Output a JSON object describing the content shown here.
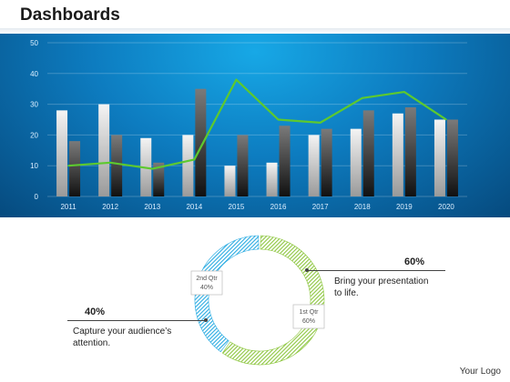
{
  "header": {
    "title": "Dashboards"
  },
  "chart_data": [
    {
      "type": "bar",
      "categories": [
        "2011",
        "2012",
        "2013",
        "2014",
        "2015",
        "2016",
        "2017",
        "2018",
        "2019",
        "2020"
      ],
      "series": [
        {
          "type": "bar",
          "values": [
            28,
            30,
            19,
            20,
            10,
            11,
            20,
            22,
            27,
            25
          ],
          "color": "#d9d9d9"
        },
        {
          "type": "bar",
          "values": [
            18,
            20,
            11,
            35,
            20,
            23,
            22,
            28,
            29,
            25
          ],
          "color": "#4a4a4a"
        },
        {
          "type": "line",
          "values": [
            10,
            11,
            9,
            12,
            38,
            25,
            24,
            32,
            34,
            25
          ],
          "color": "#5dc92e"
        }
      ],
      "yticks": [
        0,
        10,
        20,
        30,
        40,
        50
      ],
      "ylim": [
        0,
        50
      ],
      "grid": true,
      "background_color": "#0d7cc0"
    },
    {
      "type": "pie",
      "variant": "donut",
      "slices": [
        {
          "label": "1st Qtr",
          "value": 60,
          "value_label": "60%",
          "color": "#8dc63f"
        },
        {
          "label": "2nd Qtr",
          "value": 40,
          "value_label": "40%",
          "color": "#29abe2"
        }
      ]
    }
  ],
  "callouts": {
    "right": {
      "pct": "60%",
      "line1": "Bring your presentation",
      "line2": "to life."
    },
    "left": {
      "pct": "40%",
      "line1": "Capture your audience’s",
      "line2": "attention."
    }
  },
  "footer": {
    "logo": "Your Logo"
  }
}
